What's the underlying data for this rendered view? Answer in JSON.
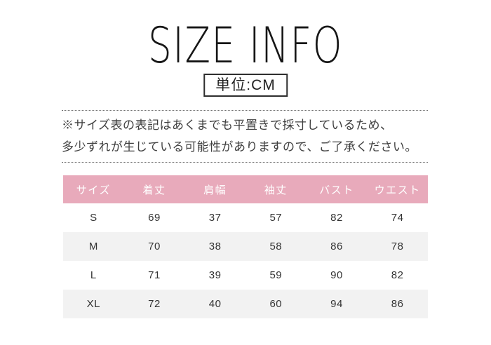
{
  "title": "SIZE INFO",
  "unit_label": "単位:CM",
  "note": {
    "line1": "※サイズ表の表記はあくまでも平置きで採寸しているため、",
    "line2": "多少ずれが生じている可能性がありますので、ご了承ください。"
  },
  "colors": {
    "header_pink": "#e8aabb",
    "stripe_gray": "#f2f2f2",
    "border_dark": "#2e2e2e",
    "text_dark": "#333333"
  },
  "chart_data": {
    "type": "table",
    "title": "SIZE INFO",
    "unit": "CM",
    "columns": [
      "サイズ",
      "着丈",
      "肩幅",
      "袖丈",
      "バスト",
      "ウエスト"
    ],
    "rows": [
      [
        "S",
        "69",
        "37",
        "57",
        "82",
        "74"
      ],
      [
        "M",
        "70",
        "38",
        "58",
        "86",
        "78"
      ],
      [
        "L",
        "71",
        "39",
        "59",
        "90",
        "82"
      ],
      [
        "XL",
        "72",
        "40",
        "60",
        "94",
        "86"
      ]
    ],
    "layout_hints": {
      "header_background": "#e8aabb",
      "header_text_color": "#ffffff",
      "striped_rows": [
        "M",
        "XL"
      ],
      "stripe_color": "#f2f2f2"
    }
  }
}
